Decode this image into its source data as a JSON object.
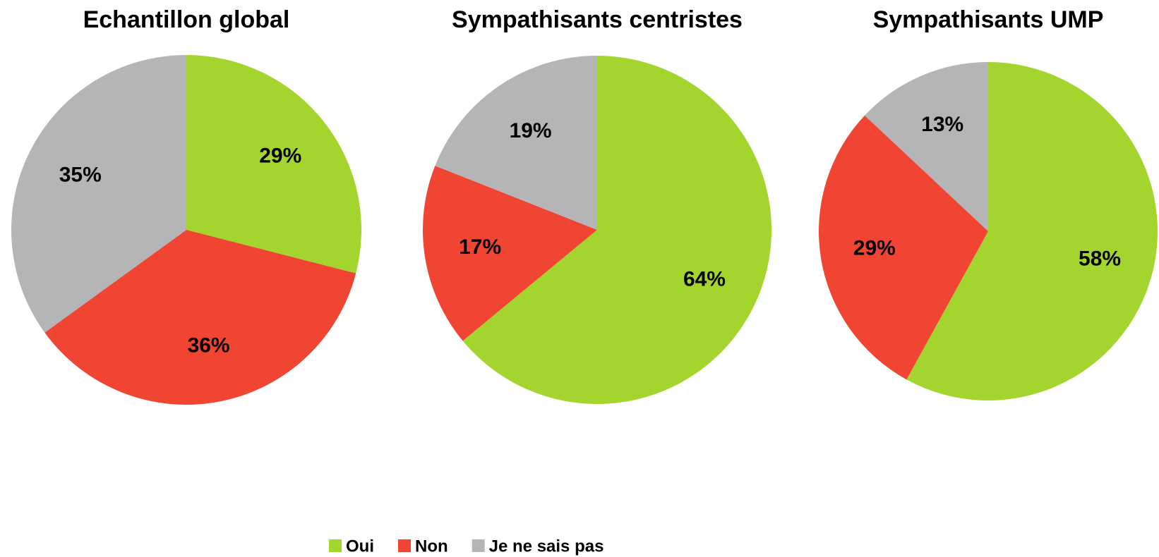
{
  "chart_data": [
    {
      "type": "pie",
      "title": "Echantillon global",
      "categories": [
        "Oui",
        "Non",
        "Je ne sais pas"
      ],
      "values": [
        29,
        36,
        35
      ],
      "value_labels": [
        "29%",
        "36%",
        "35%"
      ],
      "colors": [
        "#a3d52e",
        "#f04533",
        "#b5b5b7"
      ]
    },
    {
      "type": "pie",
      "title": "Sympathisants centristes",
      "categories": [
        "Oui",
        "Non",
        "Je ne sais pas"
      ],
      "values": [
        64,
        17,
        19
      ],
      "value_labels": [
        "64%",
        "17%",
        "19%"
      ],
      "colors": [
        "#a3d52e",
        "#f04533",
        "#b5b5b7"
      ]
    },
    {
      "type": "pie",
      "title": "Sympathisants UMP",
      "categories": [
        "Oui",
        "Non",
        "Je ne sais pas"
      ],
      "values": [
        58,
        29,
        13
      ],
      "value_labels": [
        "58%",
        "29%",
        "13%"
      ],
      "colors": [
        "#a3d52e",
        "#f04533",
        "#b5b5b7"
      ]
    }
  ]
}
